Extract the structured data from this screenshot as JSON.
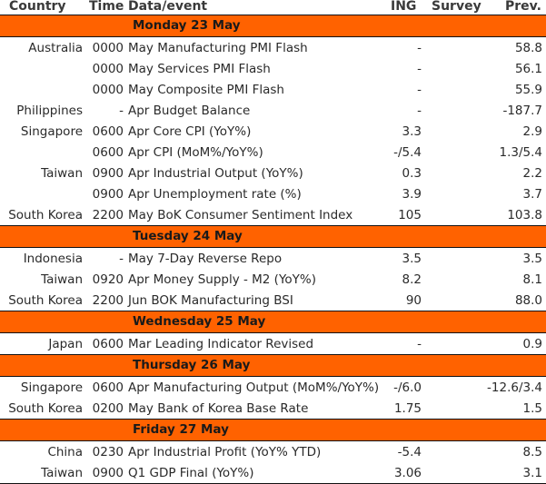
{
  "columns": {
    "country": "Country",
    "time": "Time",
    "event": "Data/event",
    "ing": "ING",
    "survey": "Survey",
    "prev": "Prev."
  },
  "days": [
    {
      "label": "Monday 23 May",
      "rows": [
        {
          "country": "Australia",
          "time": "0000",
          "event": "May Manufacturing PMI Flash",
          "ing": "-",
          "survey": "",
          "prev": "58.8"
        },
        {
          "country": "",
          "time": "0000",
          "event": "May Services PMI Flash",
          "ing": "-",
          "survey": "",
          "prev": "56.1"
        },
        {
          "country": "",
          "time": "0000",
          "event": "May Composite PMI Flash",
          "ing": "-",
          "survey": "",
          "prev": "55.9"
        },
        {
          "country": "Philippines",
          "time": "-",
          "event": "Apr Budget Balance",
          "ing": "-",
          "survey": "",
          "prev": "-187.7"
        },
        {
          "country": "Singapore",
          "time": "0600",
          "event": "Apr Core CPI (YoY%)",
          "ing": "3.3",
          "survey": "",
          "prev": "2.9"
        },
        {
          "country": "",
          "time": "0600",
          "event": "Apr CPI (MoM%/YoY%)",
          "ing": "-/5.4",
          "survey": "",
          "prev": "1.3/5.4"
        },
        {
          "country": "Taiwan",
          "time": "0900",
          "event": "Apr Industrial Output (YoY%)",
          "ing": "0.3",
          "survey": "",
          "prev": "2.2"
        },
        {
          "country": "",
          "time": "0900",
          "event": "Apr Unemployment rate (%)",
          "ing": "3.9",
          "survey": "",
          "prev": "3.7"
        },
        {
          "country": "South Korea",
          "time": "2200",
          "event": "May BoK Consumer Sentiment Index",
          "ing": "105",
          "survey": "",
          "prev": "103.8"
        }
      ]
    },
    {
      "label": "Tuesday 24 May",
      "rows": [
        {
          "country": "Indonesia",
          "time": "-",
          "event": "May 7-Day Reverse Repo",
          "ing": "3.5",
          "survey": "",
          "prev": "3.5"
        },
        {
          "country": "Taiwan",
          "time": "0920",
          "event": "Apr Money Supply - M2 (YoY%)",
          "ing": "8.2",
          "survey": "",
          "prev": "8.1"
        },
        {
          "country": "South Korea",
          "time": "2200",
          "event": "Jun BOK Manufacturing BSI",
          "ing": "90",
          "survey": "",
          "prev": "88.0"
        }
      ]
    },
    {
      "label": "Wednesday 25 May",
      "rows": [
        {
          "country": "Japan",
          "time": "0600",
          "event": "Mar Leading Indicator Revised",
          "ing": "-",
          "survey": "",
          "prev": "0.9"
        }
      ]
    },
    {
      "label": "Thursday 26 May",
      "rows": [
        {
          "country": "Singapore",
          "time": "0600",
          "event": "Apr Manufacturing Output (MoM%/YoY%)",
          "ing": "-/6.0",
          "survey": "",
          "prev": "-12.6/3.4"
        },
        {
          "country": "South Korea",
          "time": "0200",
          "event": "May Bank of Korea Base Rate",
          "ing": "1.75",
          "survey": "",
          "prev": "1.5"
        }
      ]
    },
    {
      "label": "Friday 27 May",
      "rows": [
        {
          "country": "China",
          "time": "0230",
          "event": "Apr Industrial Profit (YoY% YTD)",
          "ing": "-5.4",
          "survey": "",
          "prev": "8.5"
        },
        {
          "country": "Taiwan",
          "time": "0900",
          "event": "Q1 GDP Final (YoY%)",
          "ing": "3.06",
          "survey": "",
          "prev": "3.1"
        }
      ]
    }
  ],
  "colors": {
    "day_band": "#ff6200",
    "rule": "#111111",
    "text": "#2a2a2a"
  }
}
